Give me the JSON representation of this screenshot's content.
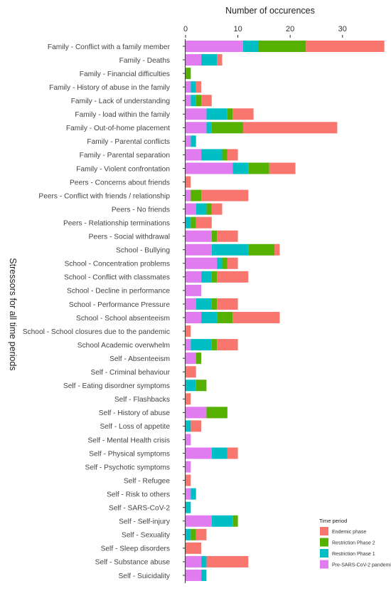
{
  "chart_data": {
    "type": "bar",
    "orientation": "horizontal",
    "stacked": true,
    "xlabel": "Number of occurences",
    "ylabel": "Stressors for all time periods",
    "x_ticks": [
      0,
      10,
      20,
      30
    ],
    "xlim": [
      0,
      39
    ],
    "legend_title": "Time period",
    "legend_position": "bottom-right",
    "grid": false,
    "categories": [
      "Family - Conflict with a family member",
      "Family - Deaths",
      "Family - Financial difficulties",
      "Family - History of abuse in the family",
      "Family - Lack of understanding",
      "Family - load within the family",
      "Family - Out-of-home placement",
      "Family - Parental conflicts",
      "Family - Parental separation",
      "Family - Violent confrontation",
      "Peers - Concerns about friends",
      "Peers - Conflict with friends / relationship",
      "Peers - No friends",
      "Peers - Relationship terminations",
      "Peers - Social withdrawal",
      "School - Bullying",
      "School - Concentration problems",
      "School - Conflict with classmates",
      "School - Decline in performance",
      "School - Performance Pressure",
      "School - School absenteeism",
      "School - School closures due to the pandemic",
      "School Academic overwhelm",
      "Self - Absenteeism",
      "Self - Criminal behaviour",
      "Self - Eating disordner symptoms",
      "Self - Flashbacks",
      "Self - History of abuse",
      "Self - Loss of appetite",
      "Self - Mental Health crisis",
      "Self - Physical symptoms",
      "Self - Psychotic symptoms",
      "Self - Refugee",
      "Self - Risk to others",
      "Self - SARS-CoV-2",
      "Self - Self-injury",
      "Self - Sexuality",
      "Self - Sleep disorders",
      "Self - Substance abuse",
      "Self - Suicidality"
    ],
    "series": [
      {
        "name": "Pre-SARS-CoV-2 pandemic",
        "color": "#E07BF0",
        "values": [
          11,
          3,
          0,
          1,
          1,
          4,
          4,
          1,
          3,
          9,
          0,
          1,
          2,
          0,
          5,
          5,
          6,
          3,
          3,
          2,
          3,
          0,
          1,
          2,
          0,
          0,
          0,
          4,
          0,
          1,
          5,
          1,
          0,
          1,
          0,
          5,
          0,
          0,
          3,
          3
        ]
      },
      {
        "name": "Restriction Phase 1",
        "color": "#00BFC4",
        "values": [
          3,
          3,
          0,
          1,
          1,
          4,
          1,
          1,
          4,
          3,
          0,
          0,
          2,
          1,
          0,
          7,
          1,
          2,
          0,
          3,
          3,
          0,
          4,
          0,
          0,
          2,
          0,
          0,
          1,
          0,
          3,
          0,
          0,
          1,
          1,
          4,
          1,
          0,
          1,
          1
        ]
      },
      {
        "name": "Restriction Phase 2",
        "color": "#56B000",
        "values": [
          9,
          0,
          1,
          0,
          1,
          1,
          6,
          0,
          1,
          4,
          0,
          2,
          1,
          1,
          1,
          5,
          1,
          1,
          0,
          1,
          3,
          0,
          1,
          1,
          0,
          2,
          0,
          4,
          0,
          0,
          0,
          0,
          0,
          0,
          0,
          1,
          1,
          0,
          0,
          0
        ]
      },
      {
        "name": "Endemic phase",
        "color": "#F8766D",
        "values": [
          15,
          1,
          0,
          1,
          2,
          4,
          18,
          0,
          2,
          5,
          1,
          9,
          2,
          3,
          4,
          1,
          2,
          6,
          0,
          4,
          9,
          1,
          4,
          0,
          2,
          0,
          1,
          0,
          2,
          0,
          2,
          0,
          1,
          0,
          0,
          0,
          2,
          3,
          8,
          0
        ]
      }
    ],
    "legend_order": [
      "Endemic phase",
      "Restriction Phase 2",
      "Restriction Phase 1",
      "Pre-SARS-CoV-2 pandemic"
    ]
  }
}
